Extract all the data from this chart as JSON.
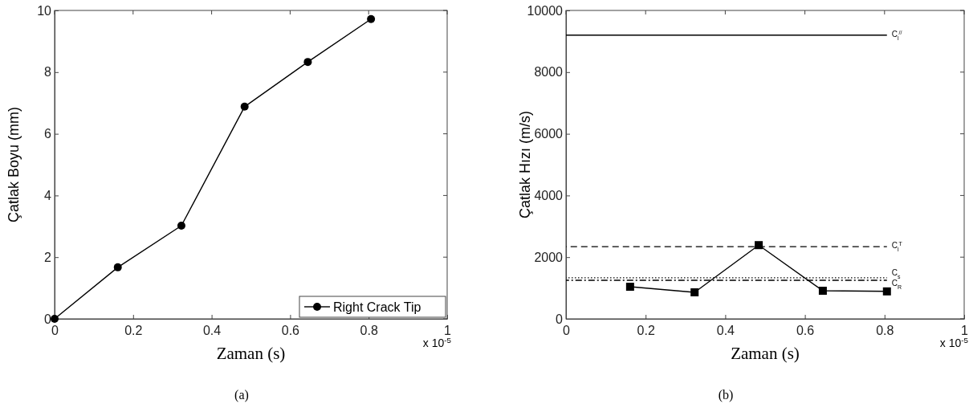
{
  "chart_data": [
    {
      "type": "line",
      "xlabel": "Zaman (s)",
      "ylabel": "Çatlak Boyu (mm)",
      "xlim": [
        0,
        1
      ],
      "ylim": [
        0,
        10
      ],
      "xticks": [
        0,
        0.2,
        0.4,
        0.6,
        0.8,
        1
      ],
      "yticks": [
        0,
        2,
        4,
        6,
        8,
        10
      ],
      "annotations": [
        "x 10$^{-5}$",
        "(a)"
      ],
      "legend": "bottom right",
      "grid": false,
      "series": [
        {
          "name": "Right Crack Tip",
          "color": "#000000",
          "marker": "circle",
          "line_style": "solid",
          "x": [
            0,
            0.161,
            0.323,
            0.484,
            0.645,
            0.806
          ],
          "values": [
            0,
            1.67,
            3.02,
            6.88,
            8.33,
            9.72
          ]
        }
      ]
    },
    {
      "type": "line",
      "xlabel": "Zaman (s)",
      "ylabel": "Çatlak Hızı (m/s)",
      "xlim": [
        0,
        1
      ],
      "ylim": [
        0,
        10000
      ],
      "xticks": [
        0,
        0.2,
        0.4,
        0.6,
        0.8,
        1
      ],
      "yticks": [
        0,
        2000,
        4000,
        6000,
        8000,
        10000
      ],
      "annotations": [
        "x 10$^{-5}$",
        "(b)"
      ],
      "grid": false,
      "series": [
        {
          "color": "#000000",
          "marker": "square",
          "line_style": "solid",
          "x": [
            0.161,
            0.323,
            0.484,
            0.645,
            0.806
          ],
          "values": [
            1040,
            860,
            2390,
            910,
            890
          ]
        },
        {
          "name": "C$_{l}$$^{//}$",
          "color": "#000000",
          "marker": "none",
          "line_style": "solid",
          "x": [
            0,
            0.806
          ],
          "values": [
            9200,
            9200
          ]
        },
        {
          "name": "C$_{l}$$^{T}$",
          "color": "#000000",
          "marker": "none",
          "line_style": "dashed",
          "x": [
            0,
            0.806
          ],
          "values": [
            2340,
            2340
          ]
        },
        {
          "name": "C$_{s}$",
          "color": "#000000",
          "marker": "none",
          "line_style": "dotted",
          "x": [
            0,
            0.806
          ],
          "values": [
            1330,
            1330
          ]
        },
        {
          "name": "C$_{R}$",
          "color": "#000000",
          "marker": "none",
          "line_style": "dashdot",
          "x": [
            0,
            0.806
          ],
          "values": [
            1250,
            1250
          ]
        }
      ]
    }
  ]
}
